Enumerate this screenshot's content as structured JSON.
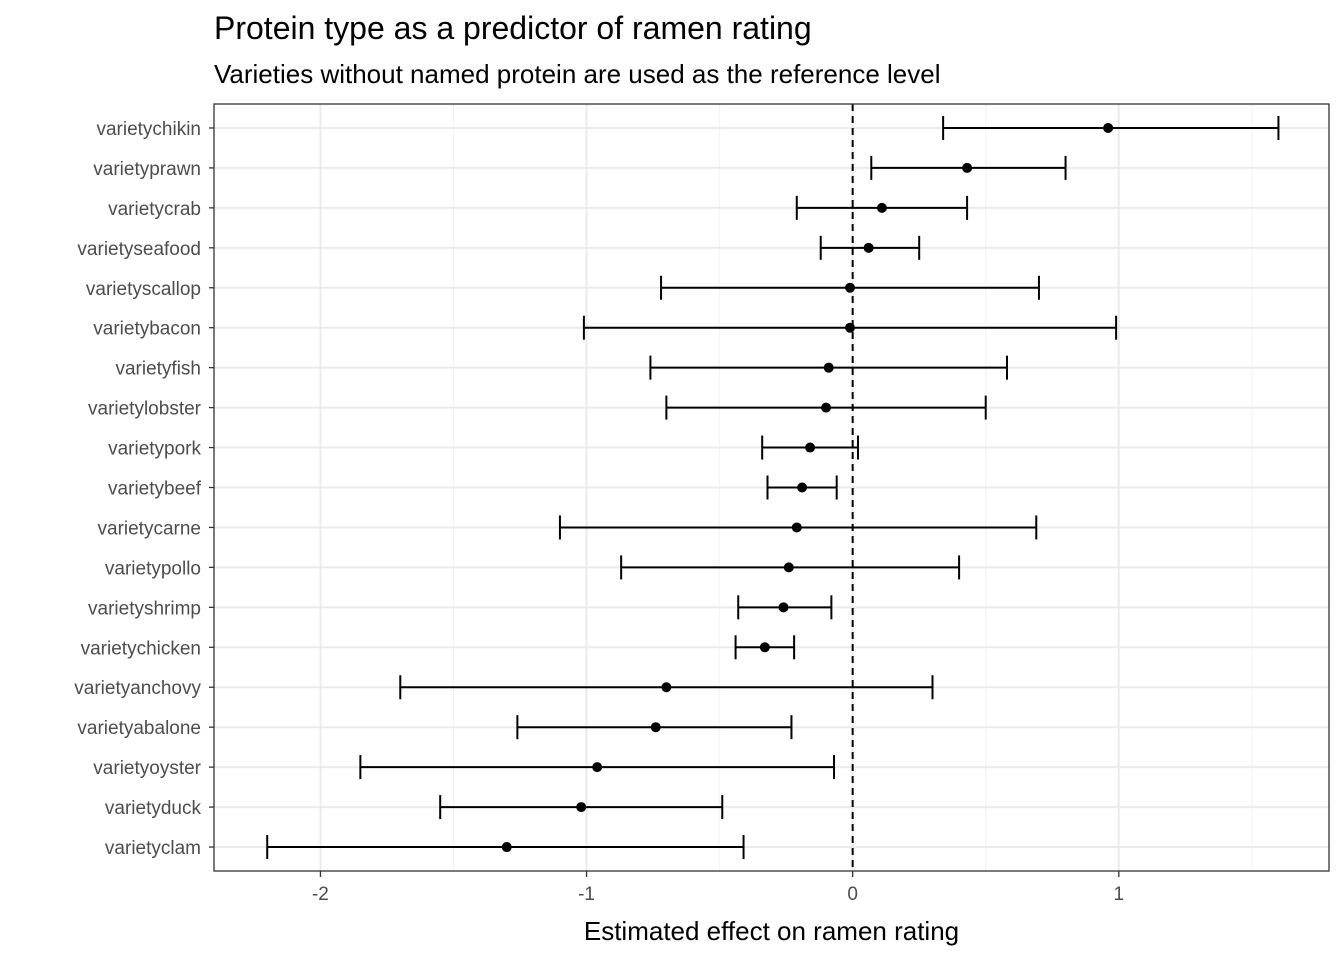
{
  "chart_data": {
    "type": "scatter",
    "title": "Protein type as a predictor of ramen rating",
    "subtitle": "Varieties without named protein are used as the reference level",
    "xlabel": "Estimated effect on ramen rating",
    "ylabel": "",
    "xlim": [
      -2.4,
      1.79
    ],
    "xticks": [
      -2,
      -1,
      0,
      1
    ],
    "xtick_labels": [
      "-2",
      "-1",
      "0",
      "1"
    ],
    "reference_line": 0,
    "grid": true,
    "terms": [
      {
        "term": "varietychikin",
        "estimate": 0.96,
        "low": 0.34,
        "high": 1.6
      },
      {
        "term": "varietyprawn",
        "estimate": 0.43,
        "low": 0.07,
        "high": 0.8
      },
      {
        "term": "varietycrab",
        "estimate": 0.11,
        "low": -0.21,
        "high": 0.43
      },
      {
        "term": "varietyseafood",
        "estimate": 0.06,
        "low": -0.12,
        "high": 0.25
      },
      {
        "term": "varietyscallop",
        "estimate": -0.01,
        "low": -0.72,
        "high": 0.7
      },
      {
        "term": "varietybacon",
        "estimate": -0.01,
        "low": -1.01,
        "high": 0.99
      },
      {
        "term": "varietyfish",
        "estimate": -0.09,
        "low": -0.76,
        "high": 0.58
      },
      {
        "term": "varietylobster",
        "estimate": -0.1,
        "low": -0.7,
        "high": 0.5
      },
      {
        "term": "varietypork",
        "estimate": -0.16,
        "low": -0.34,
        "high": 0.02
      },
      {
        "term": "varietybeef",
        "estimate": -0.19,
        "low": -0.32,
        "high": -0.06
      },
      {
        "term": "varietycarne",
        "estimate": -0.21,
        "low": -1.1,
        "high": 0.69
      },
      {
        "term": "varietypollo",
        "estimate": -0.24,
        "low": -0.87,
        "high": 0.4
      },
      {
        "term": "varietyshrimp",
        "estimate": -0.26,
        "low": -0.43,
        "high": -0.08
      },
      {
        "term": "varietychicken",
        "estimate": -0.33,
        "low": -0.44,
        "high": -0.22
      },
      {
        "term": "varietyanchovy",
        "estimate": -0.7,
        "low": -1.7,
        "high": 0.3
      },
      {
        "term": "varietyabalone",
        "estimate": -0.74,
        "low": -1.26,
        "high": -0.23
      },
      {
        "term": "varietyoyster",
        "estimate": -0.96,
        "low": -1.85,
        "high": -0.07
      },
      {
        "term": "varietyduck",
        "estimate": -1.02,
        "low": -1.55,
        "high": -0.49
      },
      {
        "term": "varietyclam",
        "estimate": -1.3,
        "low": -2.2,
        "high": -0.41
      }
    ]
  }
}
